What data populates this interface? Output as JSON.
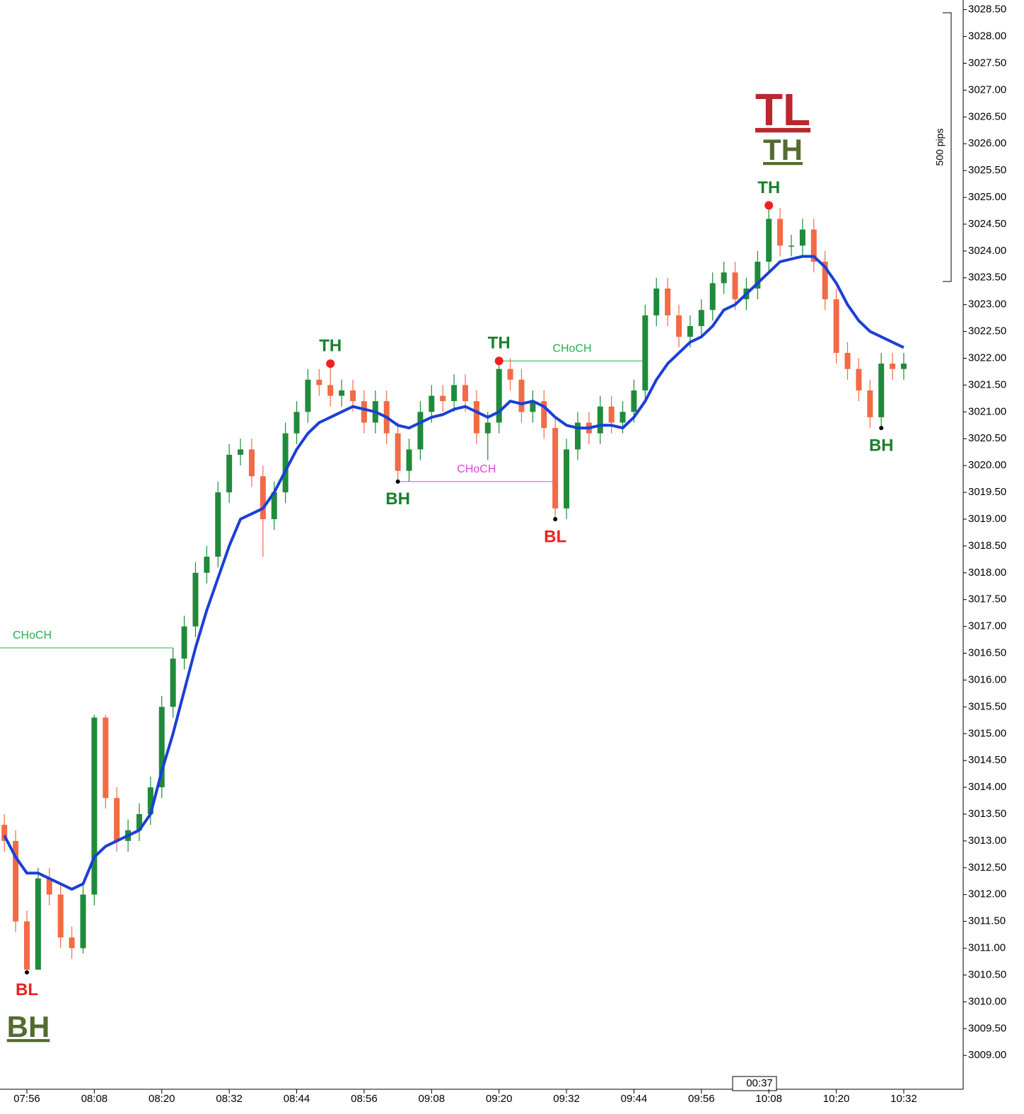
{
  "chart_data": {
    "type": "candlestick",
    "x": [
      "07:52",
      "07:54",
      "07:56",
      "07:58",
      "08:00",
      "08:02",
      "08:04",
      "08:06",
      "08:08",
      "08:10",
      "08:12",
      "08:14",
      "08:16",
      "08:18",
      "08:20",
      "08:22",
      "08:24",
      "08:26",
      "08:28",
      "08:30",
      "08:32",
      "08:34",
      "08:36",
      "08:38",
      "08:40",
      "08:42",
      "08:44",
      "08:46",
      "08:48",
      "08:50",
      "08:52",
      "08:54",
      "08:56",
      "08:58",
      "09:00",
      "09:02",
      "09:04",
      "09:06",
      "09:08",
      "09:10",
      "09:12",
      "09:14",
      "09:16",
      "09:18",
      "09:20",
      "09:22",
      "09:24",
      "09:26",
      "09:28",
      "09:30",
      "09:32",
      "09:34",
      "09:36",
      "09:38",
      "09:40",
      "09:42",
      "09:44",
      "09:46",
      "09:48",
      "09:50",
      "09:52",
      "09:54",
      "09:56",
      "09:58",
      "10:00",
      "10:02",
      "10:04",
      "10:06",
      "10:08",
      "10:10",
      "10:12",
      "10:14",
      "10:16",
      "10:18",
      "10:20",
      "10:22",
      "10:24",
      "10:26",
      "10:28",
      "10:30",
      "10:32"
    ],
    "open": [
      3013.3,
      3013.0,
      3011.5,
      3010.6,
      3012.3,
      3012.0,
      3011.2,
      3011.0,
      3012.0,
      3015.3,
      3013.8,
      3013.0,
      3013.2,
      3013.5,
      3014.0,
      3015.5,
      3016.4,
      3017.0,
      3018.0,
      3018.3,
      3019.5,
      3020.2,
      3020.3,
      3019.8,
      3019.0,
      3019.5,
      3020.6,
      3021.0,
      3021.6,
      3021.5,
      3021.3,
      3021.4,
      3021.2,
      3020.8,
      3021.2,
      3020.6,
      3019.9,
      3020.3,
      3021.0,
      3021.3,
      3021.2,
      3021.5,
      3021.2,
      3020.6,
      3020.8,
      3021.8,
      3021.6,
      3021.0,
      3021.2,
      3020.7,
      3019.2,
      3020.3,
      3020.8,
      3020.6,
      3021.1,
      3020.8,
      3021.0,
      3021.4,
      3022.8,
      3023.3,
      3022.8,
      3022.4,
      3022.6,
      3022.9,
      3023.4,
      3023.6,
      3023.1,
      3023.3,
      3023.8,
      3024.6,
      3024.1,
      3024.1,
      3024.4,
      3023.8,
      3023.1,
      3022.1,
      3021.8,
      3021.4,
      3020.9,
      3021.9,
      3021.8
    ],
    "high": [
      3013.5,
      3013.2,
      3011.7,
      3012.5,
      3012.5,
      3012.2,
      3011.4,
      3012.2,
      3015.35,
      3015.35,
      3014.0,
      3013.4,
      3013.7,
      3014.2,
      3015.7,
      3016.6,
      3017.2,
      3018.2,
      3018.5,
      3019.7,
      3020.4,
      3020.5,
      3020.5,
      3020.0,
      3019.7,
      3020.8,
      3021.2,
      3021.8,
      3021.8,
      3021.9,
      3021.6,
      3021.6,
      3021.4,
      3021.4,
      3021.4,
      3020.8,
      3020.5,
      3021.2,
      3021.5,
      3021.5,
      3021.7,
      3021.7,
      3021.4,
      3021.0,
      3021.95,
      3022.0,
      3021.8,
      3021.4,
      3021.4,
      3020.9,
      3020.5,
      3021.0,
      3021.0,
      3021.3,
      3021.3,
      3021.2,
      3021.6,
      3023.0,
      3023.5,
      3023.5,
      3023.0,
      3022.8,
      3023.1,
      3023.6,
      3023.8,
      3023.8,
      3023.5,
      3024.0,
      3024.85,
      3024.8,
      3024.3,
      3024.6,
      3024.6,
      3024.0,
      3023.3,
      3022.3,
      3022.0,
      3021.6,
      3022.1,
      3022.1,
      3022.1
    ],
    "low": [
      3012.8,
      3011.3,
      3010.55,
      3010.6,
      3011.8,
      3011.0,
      3010.8,
      3010.9,
      3011.8,
      3013.6,
      3012.8,
      3012.8,
      3013.0,
      3013.3,
      3013.8,
      3015.3,
      3016.2,
      3016.8,
      3017.8,
      3018.1,
      3019.3,
      3020.0,
      3019.6,
      3018.3,
      3018.8,
      3019.3,
      3020.4,
      3020.8,
      3021.3,
      3021.1,
      3021.1,
      3021.0,
      3020.6,
      3020.6,
      3020.4,
      3019.7,
      3019.7,
      3020.1,
      3020.8,
      3021.0,
      3021.0,
      3021.0,
      3020.4,
      3020.1,
      3020.6,
      3021.4,
      3020.8,
      3020.8,
      3020.5,
      3019.0,
      3019.0,
      3020.1,
      3020.4,
      3020.4,
      3020.6,
      3020.6,
      3020.8,
      3021.2,
      3022.6,
      3022.6,
      3022.2,
      3022.2,
      3022.4,
      3022.7,
      3023.2,
      3022.9,
      3022.9,
      3023.1,
      3023.6,
      3023.9,
      3023.9,
      3023.9,
      3023.6,
      3022.9,
      3021.9,
      3021.6,
      3021.2,
      3020.7,
      3020.7,
      3021.6,
      3021.6
    ],
    "close": [
      3013.0,
      3011.5,
      3010.6,
      3012.3,
      3012.0,
      3011.2,
      3011.0,
      3012.0,
      3015.3,
      3013.8,
      3013.0,
      3013.2,
      3013.5,
      3014.0,
      3015.5,
      3016.4,
      3017.0,
      3018.0,
      3018.3,
      3019.5,
      3020.2,
      3020.3,
      3019.8,
      3019.0,
      3019.5,
      3020.6,
      3021.0,
      3021.6,
      3021.5,
      3021.3,
      3021.4,
      3021.2,
      3020.8,
      3021.2,
      3020.6,
      3019.9,
      3020.3,
      3021.0,
      3021.3,
      3021.2,
      3021.5,
      3021.2,
      3020.6,
      3020.8,
      3021.8,
      3021.6,
      3021.0,
      3021.2,
      3020.7,
      3019.2,
      3020.3,
      3020.8,
      3020.6,
      3021.1,
      3020.8,
      3021.0,
      3021.4,
      3022.8,
      3023.3,
      3022.8,
      3022.4,
      3022.6,
      3022.9,
      3023.4,
      3023.6,
      3023.1,
      3023.3,
      3023.8,
      3024.6,
      3024.1,
      3024.1,
      3024.4,
      3023.8,
      3023.1,
      3022.1,
      3021.8,
      3021.4,
      3020.9,
      3021.9,
      3021.8,
      3021.9
    ],
    "up_color": "#1f8b3a",
    "down_color": "#f26a46",
    "series": [
      {
        "color": "#1a3fd6",
        "values": [
          3013.1,
          3012.7,
          3012.4,
          3012.4,
          3012.3,
          3012.2,
          3012.1,
          3012.2,
          3012.7,
          3012.9,
          3013.0,
          3013.1,
          3013.2,
          3013.5,
          3014.3,
          3015.0,
          3015.8,
          3016.6,
          3017.3,
          3017.9,
          3018.5,
          3019.0,
          3019.1,
          3019.2,
          3019.5,
          3019.9,
          3020.3,
          3020.6,
          3020.8,
          3020.9,
          3021.0,
          3021.1,
          3021.05,
          3021.0,
          3020.9,
          3020.75,
          3020.7,
          3020.8,
          3020.9,
          3020.95,
          3021.05,
          3021.1,
          3021.0,
          3020.9,
          3021.0,
          3021.2,
          3021.15,
          3021.2,
          3021.1,
          3020.9,
          3020.75,
          3020.7,
          3020.7,
          3020.75,
          3020.75,
          3020.7,
          3020.9,
          3021.2,
          3021.6,
          3021.9,
          3022.1,
          3022.3,
          3022.4,
          3022.6,
          3022.9,
          3023.0,
          3023.2,
          3023.4,
          3023.6,
          3023.8,
          3023.85,
          3023.9,
          3023.9,
          3023.7,
          3023.4,
          3023.0,
          3022.7,
          3022.5,
          3022.4,
          3022.3,
          3022.2
        ]
      }
    ],
    "annotations": [
      {
        "text": "BL",
        "x": "07:56",
        "y": 3010.55,
        "color": "#ee2020",
        "side": "below"
      },
      {
        "text": "TH",
        "x": "08:50",
        "y": 3021.9,
        "color": "#17802c",
        "side": "above"
      },
      {
        "text": "BH",
        "x": "09:02",
        "y": 3019.7,
        "color": "#17802c",
        "side": "below"
      },
      {
        "text": "TH",
        "x": "09:20",
        "y": 3021.95,
        "color": "#17802c",
        "side": "above"
      },
      {
        "text": "BL",
        "x": "09:30",
        "y": 3019.0,
        "color": "#ee2020",
        "side": "below"
      },
      {
        "text": "TH",
        "x": "10:08",
        "y": 3024.85,
        "color": "#17802c",
        "side": "above"
      },
      {
        "text": "BH",
        "x": "10:28",
        "y": 3020.7,
        "color": "#17802c",
        "side": "below"
      }
    ],
    "choch": [
      {
        "label": "CHoCH",
        "y": 3016.6,
        "start": "07:52",
        "end": "08:22",
        "color": "#22b14c"
      },
      {
        "label": "CHoCH",
        "y": 3019.7,
        "start": "09:02",
        "end": "09:30",
        "color": "#e040e0"
      },
      {
        "label": "CHoCH",
        "y": 3021.95,
        "start": "09:20",
        "end": "09:46",
        "color": "#22b14c"
      }
    ],
    "big_labels": [
      {
        "text": "TL",
        "color": "#b8282c"
      },
      {
        "text": "TH",
        "color": "#556b2f"
      },
      {
        "text": "BH",
        "color": "#556b2f"
      }
    ],
    "ruler_label": "500 pips",
    "timer": "00:37",
    "ylim": [
      3008.37,
      3028.68
    ],
    "yticks": [
      {
        "value": 3009,
        "label": "3009.00"
      },
      {
        "value": 3009.5,
        "label": "3009.50"
      },
      {
        "value": 3010,
        "label": "3010.00"
      },
      {
        "value": 3010.5,
        "label": "3010.50"
      },
      {
        "value": 3011,
        "label": "3011.00"
      },
      {
        "value": 3011.5,
        "label": "3011.50"
      },
      {
        "value": 3012,
        "label": "3012.00"
      },
      {
        "value": 3012.5,
        "label": "3012.50"
      },
      {
        "value": 3013,
        "label": "3013.00"
      },
      {
        "value": 3013.5,
        "label": "3013.50"
      },
      {
        "value": 3014,
        "label": "3014.00"
      },
      {
        "value": 3014.5,
        "label": "3014.50"
      },
      {
        "value": 3015,
        "label": "3015.00"
      },
      {
        "value": 3015.5,
        "label": "3015.50"
      },
      {
        "value": 3016,
        "label": "3016.00"
      },
      {
        "value": 3016.5,
        "label": "3016.50"
      },
      {
        "value": 3017,
        "label": "3017.00"
      },
      {
        "value": 3017.5,
        "label": "3017.50"
      },
      {
        "value": 3018,
        "label": "3018.00"
      },
      {
        "value": 3018.5,
        "label": "3018.50"
      },
      {
        "value": 3019,
        "label": "3019.00"
      },
      {
        "value": 3019.5,
        "label": "3019.50"
      },
      {
        "value": 3020,
        "label": "3020.00"
      },
      {
        "value": 3020.5,
        "label": "3020.50"
      },
      {
        "value": 3021,
        "label": "3021.00"
      },
      {
        "value": 3021.5,
        "label": "3021.50"
      },
      {
        "value": 3022,
        "label": "3022.00"
      },
      {
        "value": 3022.5,
        "label": "3022.50"
      },
      {
        "value": 3023,
        "label": "3023.00"
      },
      {
        "value": 3023.5,
        "label": "3023.50"
      },
      {
        "value": 3024,
        "label": "3024.00"
      },
      {
        "value": 3024.5,
        "label": "3024.50"
      },
      {
        "value": 3025,
        "label": "3025.00"
      },
      {
        "value": 3025.5,
        "label": "3025.50"
      },
      {
        "value": 3026,
        "label": "3026.00"
      },
      {
        "value": 3026.5,
        "label": "3026.50"
      },
      {
        "value": 3027,
        "label": "3027.00"
      },
      {
        "value": 3027.5,
        "label": "3027.50"
      },
      {
        "value": 3028,
        "label": "3028.00"
      },
      {
        "value": 3028.5,
        "label": "3028.50"
      }
    ],
    "xticks": [
      "07:56",
      "08:08",
      "08:20",
      "08:32",
      "08:44",
      "08:56",
      "09:08",
      "09:20",
      "09:32",
      "09:44",
      "09:56",
      "10:08",
      "10:20",
      "10:32"
    ]
  }
}
